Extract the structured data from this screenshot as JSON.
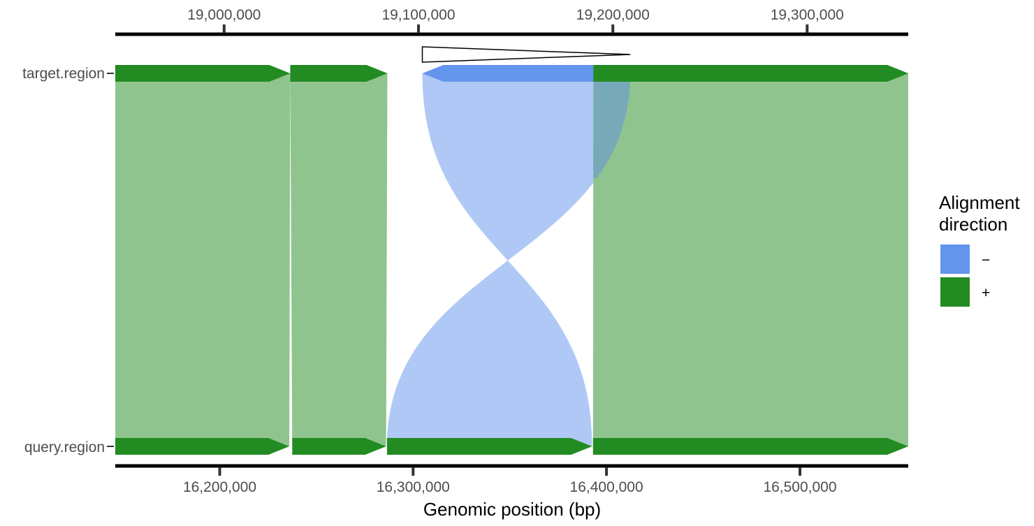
{
  "chart_data": {
    "type": "synteny-alignment",
    "title": "",
    "xlabel": "Genomic position (bp)",
    "tracks": [
      "target.region",
      "query.region"
    ],
    "target_axis": {
      "range": [
        18944000,
        19352000
      ],
      "ticks": [
        19000000,
        19100000,
        19200000,
        19300000
      ],
      "tick_labels": [
        "19,000,000",
        "19,100,000",
        "19,200,000",
        "19,300,000"
      ]
    },
    "query_axis": {
      "range": [
        16146000,
        16556000
      ],
      "ticks": [
        16200000,
        16300000,
        16400000,
        16500000
      ],
      "tick_labels": [
        "16,200,000",
        "16,300,000",
        "16,400,000",
        "16,500,000"
      ]
    },
    "alignments": [
      {
        "direction": "+",
        "target": [
          18944000,
          19034000
        ],
        "query": [
          16146000,
          16236000
        ]
      },
      {
        "direction": "+",
        "target": [
          19034000,
          19084000
        ],
        "query": [
          16237500,
          16286000
        ]
      },
      {
        "direction": "-",
        "target": [
          19102000,
          19209000
        ],
        "query": [
          16286500,
          16392500
        ]
      },
      {
        "direction": "+",
        "target": [
          19190000,
          19352000
        ],
        "query": [
          16393000,
          16556000
        ]
      }
    ],
    "inversion_marker": {
      "target": [
        19102000,
        19209000
      ]
    },
    "legend": {
      "title": "Alignment direction",
      "title_lines": [
        "Alignment",
        "direction"
      ],
      "position": "right",
      "entries": [
        {
          "label": "−",
          "direction": "-",
          "color": "#6495ED"
        },
        {
          "label": "+",
          "direction": "+",
          "color": "#228B22"
        }
      ]
    },
    "colors": {
      "+": "#228B22",
      "-": "#6495ED",
      "plus_ribbon": "#90C48F",
      "minus_ribbon": "#B0C8F5",
      "overlap_ribbon": "#78A9B9"
    }
  }
}
